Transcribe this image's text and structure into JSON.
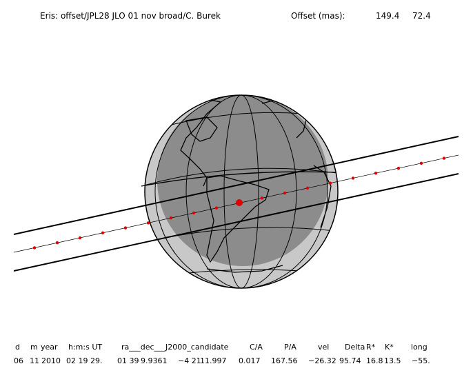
{
  "header": {
    "title": "Eris: offset/JPL28 JLO 01 nov broad/C. Burek",
    "offset_label": "Offset (mas):",
    "offset_values": [
      "149.4",
      "72.4"
    ]
  },
  "table": {
    "headers": [
      "d",
      "m",
      "year",
      "h:m:s UT",
      "ra___dec___J2000_candidate",
      "C/A",
      "P/A",
      "vel",
      "Delta",
      "R*",
      "K*",
      "long"
    ],
    "values": [
      "06",
      "11",
      "2010",
      "02 19 29.",
      "01 39",
      "9.9361",
      "−4 21",
      "11.997",
      "0.017",
      "167.56",
      "−26.32",
      "95.74",
      "16.8",
      "13.5",
      "−55."
    ]
  }
}
